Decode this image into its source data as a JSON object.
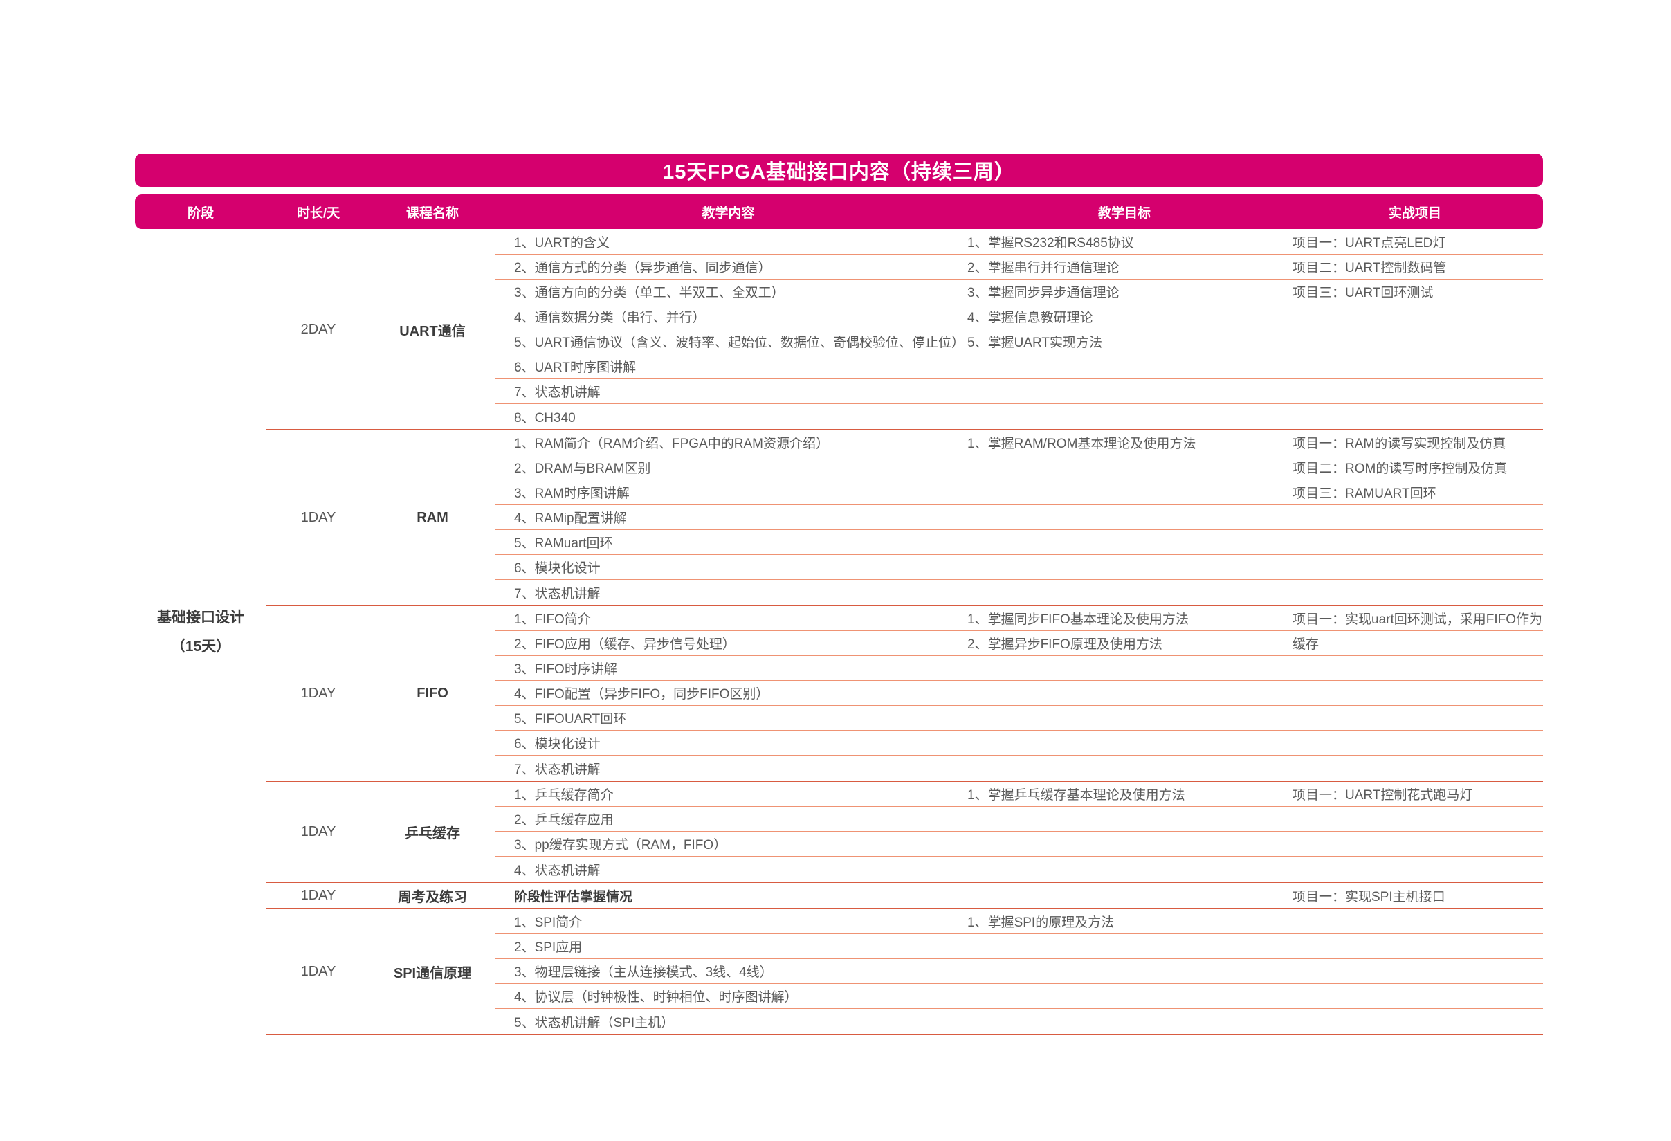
{
  "title": "15天FPGA基础接口内容（持续三周）",
  "columns": [
    {
      "label": "阶段"
    },
    {
      "label": "时长/天"
    },
    {
      "label": "课程名称"
    },
    {
      "label": "教学内容"
    },
    {
      "label": "教学目标"
    },
    {
      "label": "实战项目"
    }
  ],
  "stage": {
    "name": "基础接口设计",
    "days": "（15天）"
  },
  "colors": {
    "brand_pink": "#d5006e",
    "section_line": "#d85b41",
    "item_line": "#ef9374",
    "body_text": "#5a5a5a",
    "dark_text": "#3c3c3c"
  },
  "sections": [
    {
      "duration": "2DAY",
      "course": "UART通信",
      "content": [
        "1、UART的含义",
        "2、通信方式的分类（异步通信、同步通信）",
        "3、通信方向的分类（单工、半双工、全双工）",
        "4、通信数据分类（串行、并行）",
        "5、UART通信协议（含义、波特率、起始位、数据位、奇偶校验位、停止位）",
        "6、UART时序图讲解",
        "7、状态机讲解",
        "8、CH340"
      ],
      "goals": [
        "1、掌握RS232和RS485协议",
        "2、掌握串行并行通信理论",
        "3、掌握同步异步通信理论",
        "4、掌握信息教研理论",
        "5、掌握UART实现方法"
      ],
      "projects": [
        "项目一：UART点亮LED灯",
        "项目二：UART控制数码管",
        "项目三：UART回环测试"
      ]
    },
    {
      "duration": "1DAY",
      "course": "RAM",
      "content": [
        "1、RAM简介（RAM介绍、FPGA中的RAM资源介绍）",
        "2、DRAM与BRAM区别",
        "3、RAM时序图讲解",
        "4、RAMip配置讲解",
        "5、RAMuart回环",
        "6、模块化设计",
        "7、状态机讲解"
      ],
      "goals": [
        "1、掌握RAM/ROM基本理论及使用方法"
      ],
      "projects": [
        "项目一：RAM的读写实现控制及仿真",
        "项目二：ROM的读写时序控制及仿真",
        "项目三：RAMUART回环"
      ]
    },
    {
      "duration": "1DAY",
      "course": "FIFO",
      "content": [
        "1、FIFO简介",
        "2、FIFO应用（缓存、异步信号处理）",
        "3、FIFO时序讲解",
        "4、FIFO配置（异步FIFO，同步FIFO区别）",
        "5、FIFOUART回环",
        "6、模块化设计",
        "7、状态机讲解"
      ],
      "goals": [
        "1、掌握同步FIFO基本理论及使用方法",
        "2、掌握异步FIFO原理及使用方法"
      ],
      "projects": [
        "项目一：实现uart回环测试，采用FIFO作为",
        "缓存"
      ]
    },
    {
      "duration": "1DAY",
      "course": "乒乓缓存",
      "content": [
        "1、乒乓缓存简介",
        "2、乒乓缓存应用",
        "3、pp缓存实现方式（RAM，FIFO）",
        "4、状态机讲解"
      ],
      "goals": [
        "1、掌握乒乓缓存基本理论及使用方法"
      ],
      "projects": [
        "项目一：UART控制花式跑马灯"
      ]
    },
    {
      "duration": "1DAY",
      "course": "周考及练习",
      "content_bold": true,
      "content": [
        "阶段性评估掌握情况"
      ],
      "goals": [],
      "projects": [
        "项目一：实现SPI主机接口"
      ]
    },
    {
      "duration": "1DAY",
      "course": "SPI通信原理",
      "content": [
        "1、SPI简介",
        "2、SPI应用",
        "3、物理层链接（主从连接模式、3线、4线）",
        "4、协议层（时钟极性、时钟相位、时序图讲解）",
        "5、状态机讲解（SPI主机）"
      ],
      "goals": [
        "1、掌握SPI的原理及方法"
      ],
      "projects": []
    }
  ]
}
